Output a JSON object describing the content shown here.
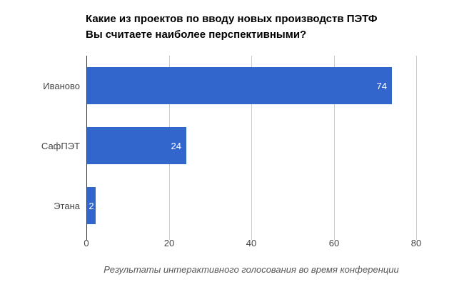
{
  "title": {
    "line1": "Какие из проектов по вводу новых производств ПЭТФ",
    "line2": "Вы считаете наиболее перспективными?"
  },
  "caption": "Результаты интерактивного голосования во время конференции",
  "colors": {
    "bar": "#3366cc",
    "gridline": "#cccccc",
    "baseline": "#333333",
    "axis_text": "#444444",
    "value_label": "#ffffff"
  },
  "chart_data": {
    "type": "bar",
    "orientation": "horizontal",
    "title": "Какие из проектов по вводу новых производств ПЭТФ Вы считаете наиболее перспективными?",
    "categories": [
      "Иваново",
      "СафПЭТ",
      "Этана"
    ],
    "values": [
      74,
      24,
      2
    ],
    "xlabel": "",
    "ylabel": "",
    "xlim": [
      0,
      80
    ],
    "x_ticks": [
      0,
      20,
      40,
      60,
      80
    ],
    "grid": true,
    "legend": "none",
    "bar_color": "#3366cc",
    "value_label_position": "inside-end",
    "annotation": "Результаты интерактивного голосования во время конференции"
  }
}
